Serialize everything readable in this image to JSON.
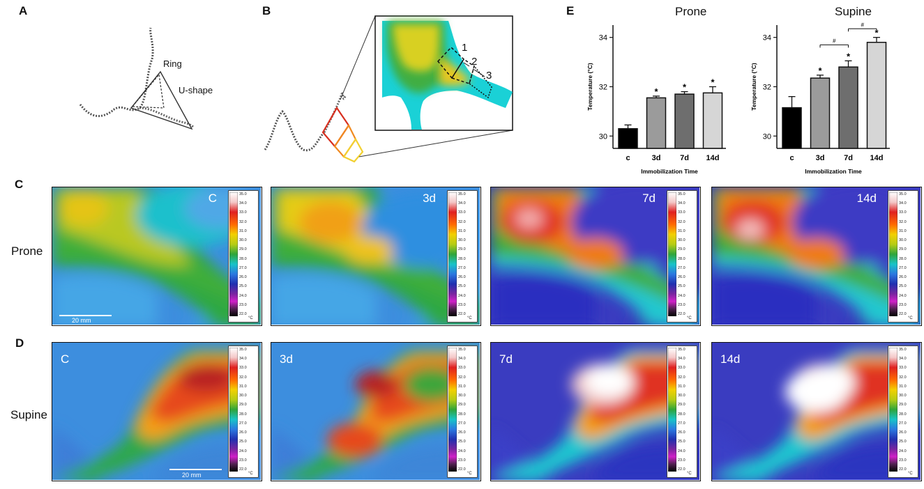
{
  "panels": {
    "a": "A",
    "b": "B",
    "c": "C",
    "d": "D",
    "e": "E"
  },
  "panel_a": {
    "ring": "Ring",
    "ushape": "U-shape"
  },
  "panel_b": {
    "roi1": "1",
    "roi2": "2",
    "roi3": "3"
  },
  "rows": {
    "prone": "Prone",
    "supine": "Supine"
  },
  "scale_bar": "20 mm",
  "colorbar": {
    "ticks": [
      "35.0",
      "34.0",
      "33.0",
      "32.0",
      "31.0",
      "30.0",
      "29.0",
      "28.0",
      "27.0",
      "26.0",
      "25.0",
      "24.0",
      "23.0",
      "22.0"
    ],
    "unit": "°C"
  },
  "thermograms": {
    "prone": [
      {
        "label": "C"
      },
      {
        "label": "3d"
      },
      {
        "label": "7d"
      },
      {
        "label": "14d"
      }
    ],
    "supine": [
      {
        "label": "C"
      },
      {
        "label": "3d"
      },
      {
        "label": "7d"
      },
      {
        "label": "14d"
      }
    ]
  },
  "colors": {
    "bar1": "#000000",
    "bar2": "#9b9b9b",
    "bar3": "#6e6e6e",
    "bar4": "#d6d6d6"
  },
  "chart_data": [
    {
      "type": "bar",
      "title": "Prone",
      "xlabel": "Immobilization Time",
      "ylabel": "Temperature (°C)",
      "categories": [
        "c",
        "3d",
        "7d",
        "14d"
      ],
      "values": [
        30.3,
        31.55,
        31.7,
        31.75
      ],
      "errors": [
        0.15,
        0.07,
        0.1,
        0.25
      ],
      "significance": [
        "",
        "*",
        "*",
        "*"
      ],
      "ylim": [
        29.5,
        34.5
      ],
      "yticks": [
        30,
        32,
        34
      ],
      "brackets": []
    },
    {
      "type": "bar",
      "title": "Supine",
      "xlabel": "Immobilization Time",
      "ylabel": "Temperature (°C)",
      "categories": [
        "c",
        "3d",
        "7d",
        "14d"
      ],
      "values": [
        31.15,
        32.35,
        32.8,
        33.8
      ],
      "errors": [
        0.45,
        0.12,
        0.25,
        0.2
      ],
      "significance": [
        "",
        "*",
        "*",
        "*"
      ],
      "ylim": [
        29.5,
        34.5
      ],
      "yticks": [
        30,
        32,
        34
      ],
      "brackets": [
        {
          "from": 1,
          "to": 2,
          "label": "#",
          "y": 33.7
        },
        {
          "from": 2,
          "to": 3,
          "label": "#",
          "y": 34.35
        }
      ]
    }
  ]
}
